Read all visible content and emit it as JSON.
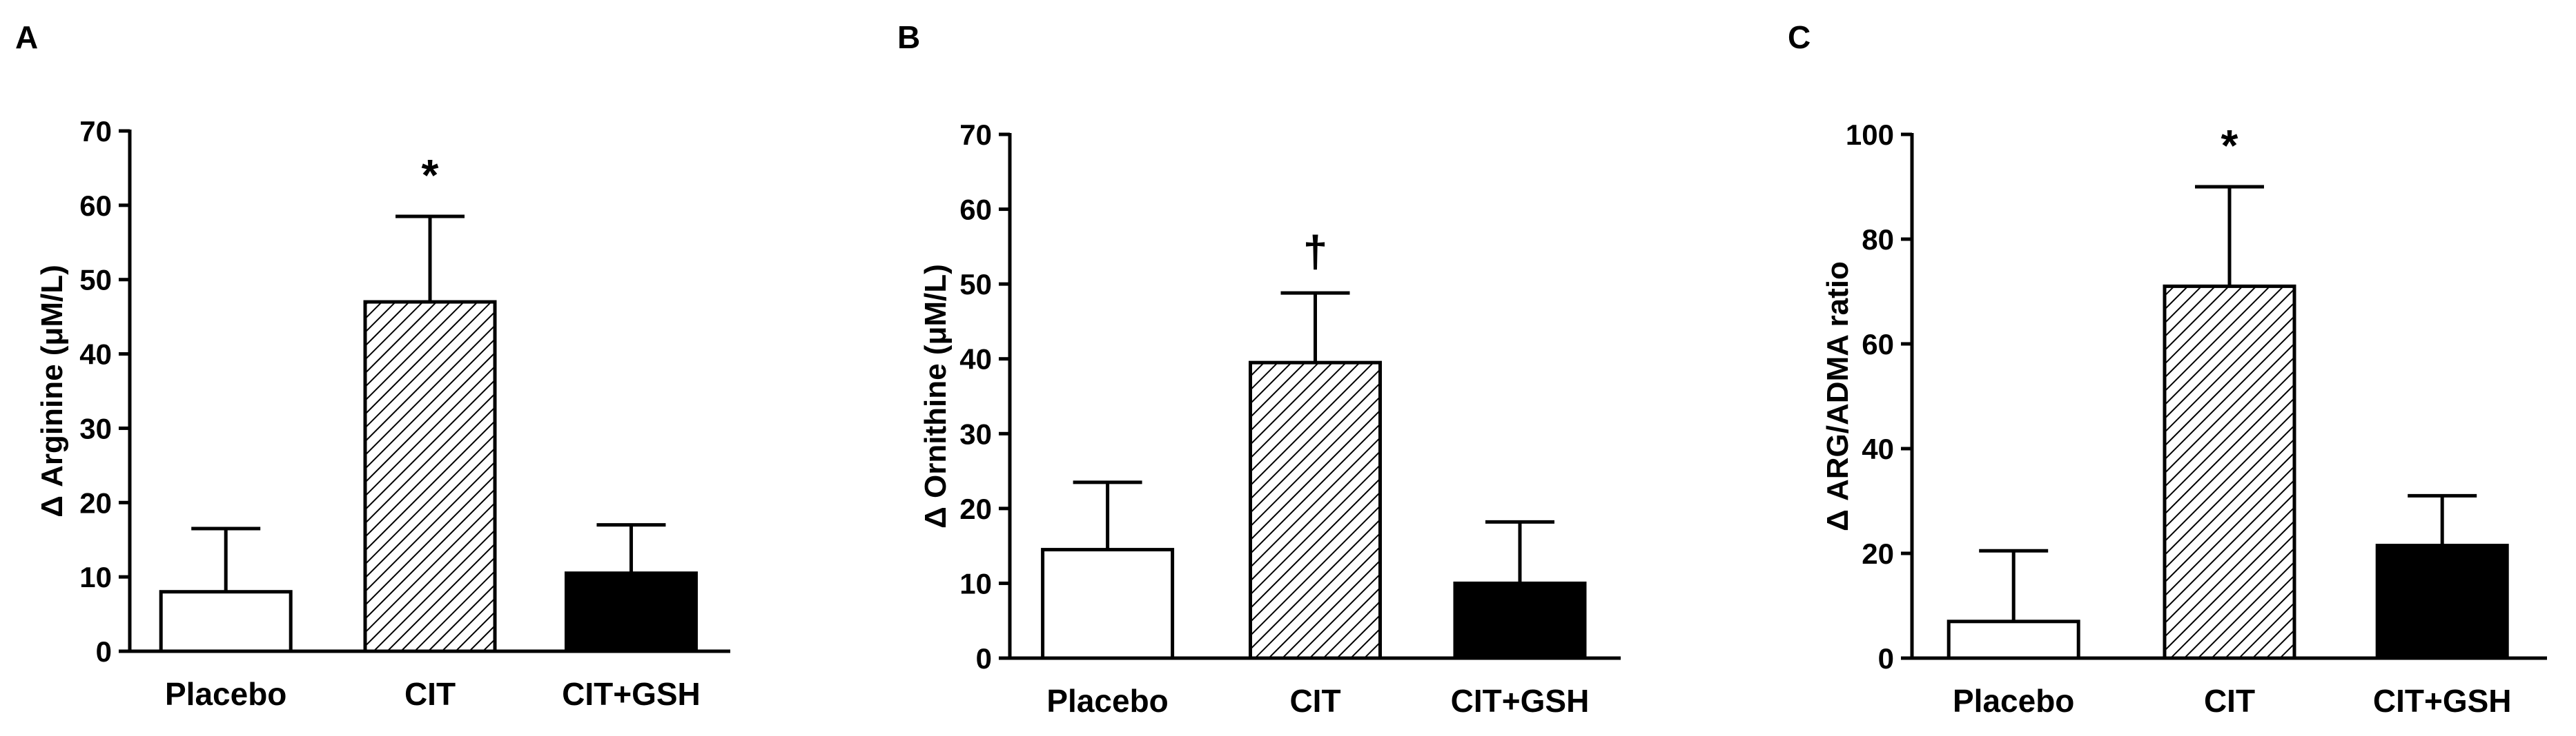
{
  "panels": [
    {
      "label": "A",
      "chart_data": {
        "type": "bar",
        "ylabel": "Δ Arginine (μM/L)",
        "categories": [
          "Placebo",
          "CIT",
          "CIT+GSH"
        ],
        "values": [
          8,
          47,
          10.5
        ],
        "errors": [
          8.5,
          11.5,
          6.5
        ],
        "fills": [
          "white",
          "hatch",
          "black"
        ],
        "significance": [
          "",
          "*",
          ""
        ],
        "ylim": [
          0,
          70
        ],
        "yticks": [
          0,
          10,
          20,
          30,
          40,
          50,
          60,
          70
        ]
      }
    },
    {
      "label": "B",
      "chart_data": {
        "type": "bar",
        "ylabel": "Δ Ornithine (μM/L)",
        "categories": [
          "Placebo",
          "CIT",
          "CIT+GSH"
        ],
        "values": [
          14.5,
          39.5,
          10
        ],
        "errors": [
          9,
          9.3,
          8.2
        ],
        "fills": [
          "white",
          "hatch",
          "black"
        ],
        "significance": [
          "",
          "†",
          ""
        ],
        "ylim": [
          0,
          70
        ],
        "yticks": [
          0,
          10,
          20,
          30,
          40,
          50,
          60,
          70
        ]
      }
    },
    {
      "label": "C",
      "chart_data": {
        "type": "bar",
        "ylabel": "Δ ARG/ADMA ratio",
        "categories": [
          "Placebo",
          "CIT",
          "CIT+GSH"
        ],
        "values": [
          7,
          71,
          21.5
        ],
        "errors": [
          13.5,
          19,
          9.5
        ],
        "fills": [
          "white",
          "hatch",
          "black"
        ],
        "significance": [
          "",
          "*",
          ""
        ],
        "ylim": [
          0,
          100
        ],
        "yticks": [
          0,
          20,
          40,
          60,
          80,
          100
        ]
      }
    }
  ]
}
